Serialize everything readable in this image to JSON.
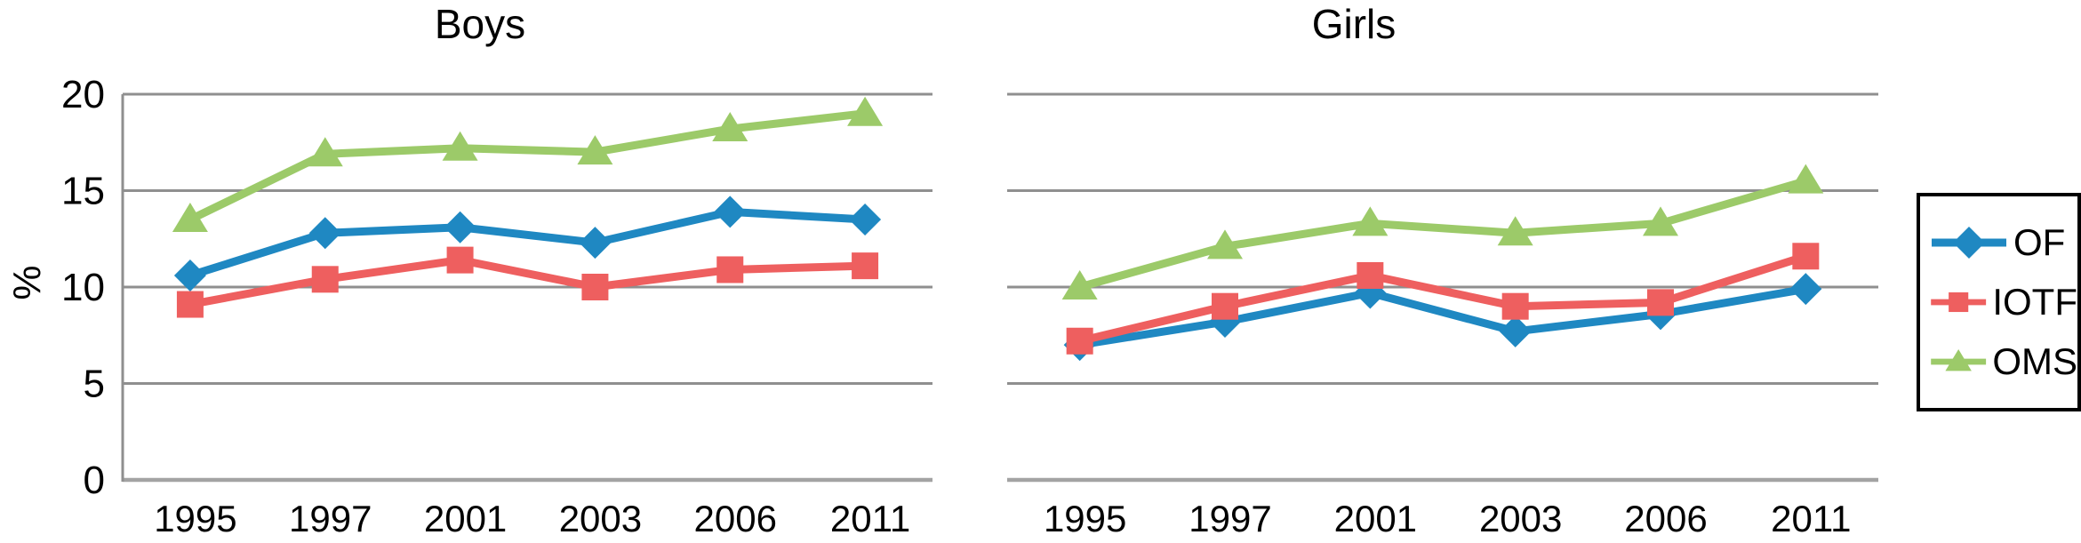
{
  "figure": {
    "y_axis_unit_label": "%"
  },
  "chart_data": [
    {
      "type": "line",
      "title": "Boys",
      "ylabel": "%",
      "xlabel": "",
      "ylim": [
        0,
        20
      ],
      "yticks": [
        0,
        5,
        10,
        15,
        20
      ],
      "grid": "horizontal",
      "categories": [
        "1995",
        "1997",
        "2001",
        "2003",
        "2006",
        "2011"
      ],
      "series": [
        {
          "name": "OF",
          "marker": "diamond",
          "color": "#1f88c2",
          "values": [
            10.6,
            12.8,
            13.1,
            12.3,
            13.9,
            13.5
          ]
        },
        {
          "name": "IOTF",
          "marker": "square",
          "color": "#ee5f5f",
          "values": [
            9.1,
            10.4,
            11.4,
            10.0,
            10.9,
            11.1
          ]
        },
        {
          "name": "OMS",
          "marker": "triangle",
          "color": "#9cca69",
          "values": [
            13.5,
            16.9,
            17.2,
            17.0,
            18.2,
            19.0
          ]
        }
      ],
      "legend_position": "right-outside"
    },
    {
      "type": "line",
      "title": "Girls",
      "ylabel": "",
      "xlabel": "",
      "ylim": [
        0,
        20
      ],
      "yticks": [
        0,
        5,
        10,
        15,
        20
      ],
      "grid": "horizontal",
      "categories": [
        "1995",
        "1997",
        "2001",
        "2003",
        "2006",
        "2011"
      ],
      "series": [
        {
          "name": "OF",
          "marker": "diamond",
          "color": "#1f88c2",
          "values": [
            7.0,
            8.2,
            9.7,
            7.7,
            8.6,
            9.9
          ]
        },
        {
          "name": "IOTF",
          "marker": "square",
          "color": "#ee5f5f",
          "values": [
            7.2,
            9.0,
            10.6,
            9.0,
            9.2,
            11.6
          ]
        },
        {
          "name": "OMS",
          "marker": "triangle",
          "color": "#9cca69",
          "values": [
            10.0,
            12.1,
            13.3,
            12.8,
            13.3,
            15.5
          ]
        }
      ],
      "legend_position": "right-outside"
    }
  ],
  "legend": {
    "items": [
      {
        "label": "OF",
        "marker": "diamond",
        "color": "#1f88c2"
      },
      {
        "label": "IOTF",
        "marker": "square",
        "color": "#ee5f5f"
      },
      {
        "label": "OMS",
        "marker": "triangle",
        "color": "#9cca69"
      }
    ]
  },
  "colors": {
    "gridline": "#8f8f8f",
    "bottom_axis": "#a3a3a3",
    "text": "#000000",
    "background": "#ffffff"
  }
}
